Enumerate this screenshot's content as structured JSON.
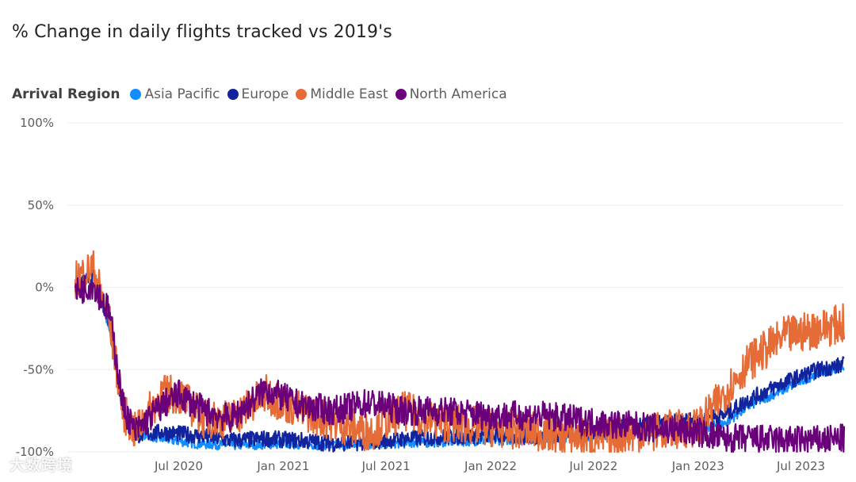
{
  "chart_data": {
    "type": "line",
    "title": "% Change in daily flights tracked vs 2019's",
    "legend_title": "Arrival Region",
    "legend_position": "top-left",
    "x_start": "2020-01-01",
    "x_end": "2023-09-15",
    "x_ticks": [
      "Jul 2020",
      "Jan 2021",
      "Jul 2021",
      "Jan 2022",
      "Jul 2022",
      "Jan 2023",
      "Jul 2023"
    ],
    "x_tick_dates": [
      "2020-07-01",
      "2021-01-01",
      "2021-07-01",
      "2022-01-01",
      "2022-07-01",
      "2023-01-01",
      "2023-07-01"
    ],
    "y_ticks": [
      "100%",
      "50%",
      "0%",
      "-50%",
      "-100%"
    ],
    "y_tick_values": [
      100,
      50,
      0,
      -50,
      -100
    ],
    "ylim": [
      -100,
      100
    ],
    "xlabel": "",
    "ylabel": "",
    "grid": "horizontal",
    "series": [
      {
        "name": "Asia Pacific",
        "color": "#118DFF",
        "x": [
          "2020-01-01",
          "2020-02-01",
          "2020-03-01",
          "2020-03-25",
          "2020-04-15",
          "2020-06-01",
          "2020-08-01",
          "2020-10-01",
          "2021-01-01",
          "2021-04-01",
          "2021-07-01",
          "2021-10-01",
          "2022-01-01",
          "2022-04-01",
          "2022-07-01",
          "2022-10-01",
          "2023-01-01",
          "2023-02-15",
          "2023-04-01",
          "2023-06-01",
          "2023-08-01",
          "2023-09-15"
        ],
        "y": [
          0,
          8,
          -25,
          -75,
          -88,
          -92,
          -95,
          -96,
          -95,
          -96,
          -95,
          -94,
          -93,
          -92,
          -90,
          -88,
          -86,
          -83,
          -72,
          -62,
          -52,
          -48
        ]
      },
      {
        "name": "Europe",
        "color": "#12239E",
        "x": [
          "2020-01-01",
          "2020-02-01",
          "2020-03-01",
          "2020-03-25",
          "2020-04-15",
          "2020-06-01",
          "2020-08-01",
          "2020-10-01",
          "2020-12-01",
          "2021-02-01",
          "2021-04-01",
          "2021-06-01",
          "2021-08-01",
          "2021-10-01",
          "2022-01-01",
          "2022-04-01",
          "2022-07-01",
          "2022-10-01",
          "2023-01-01",
          "2023-02-15",
          "2023-04-01",
          "2023-06-01",
          "2023-08-01",
          "2023-09-15"
        ],
        "y": [
          0,
          6,
          -20,
          -75,
          -90,
          -88,
          -90,
          -93,
          -92,
          -93,
          -95,
          -94,
          -92,
          -91,
          -90,
          -91,
          -87,
          -84,
          -80,
          -78,
          -68,
          -58,
          -50,
          -47
        ]
      },
      {
        "name": "Middle East",
        "color": "#E66C37",
        "x": [
          "2020-01-01",
          "2020-02-01",
          "2020-03-01",
          "2020-03-25",
          "2020-04-15",
          "2020-06-01",
          "2020-07-01",
          "2020-08-15",
          "2020-10-01",
          "2020-12-01",
          "2021-02-01",
          "2021-04-01",
          "2021-06-01",
          "2021-08-01",
          "2021-10-01",
          "2022-01-01",
          "2022-04-01",
          "2022-07-01",
          "2022-10-01",
          "2023-01-01",
          "2023-02-15",
          "2023-04-01",
          "2023-06-01",
          "2023-08-01",
          "2023-09-15"
        ],
        "y": [
          5,
          12,
          -20,
          -75,
          -88,
          -65,
          -65,
          -80,
          -80,
          -65,
          -75,
          -82,
          -88,
          -75,
          -82,
          -85,
          -88,
          -92,
          -88,
          -85,
          -65,
          -45,
          -30,
          -25,
          -22
        ]
      },
      {
        "name": "North America",
        "color": "#6B007B",
        "x": [
          "2020-01-01",
          "2020-02-01",
          "2020-03-01",
          "2020-03-25",
          "2020-04-15",
          "2020-06-01",
          "2020-07-01",
          "2020-08-15",
          "2020-10-01",
          "2020-12-01",
          "2021-02-01",
          "2021-04-01",
          "2021-06-01",
          "2021-08-01",
          "2021-10-01",
          "2022-01-01",
          "2022-04-01",
          "2022-07-01",
          "2022-10-01",
          "2023-01-01",
          "2023-02-15",
          "2023-04-01",
          "2023-06-01",
          "2023-08-01",
          "2023-09-15"
        ],
        "y": [
          -3,
          2,
          -15,
          -72,
          -88,
          -72,
          -65,
          -75,
          -80,
          -62,
          -72,
          -75,
          -70,
          -75,
          -75,
          -78,
          -78,
          -82,
          -85,
          -88,
          -92,
          -92,
          -93,
          -93,
          -92
        ]
      }
    ]
  },
  "watermark": "大数跨境"
}
